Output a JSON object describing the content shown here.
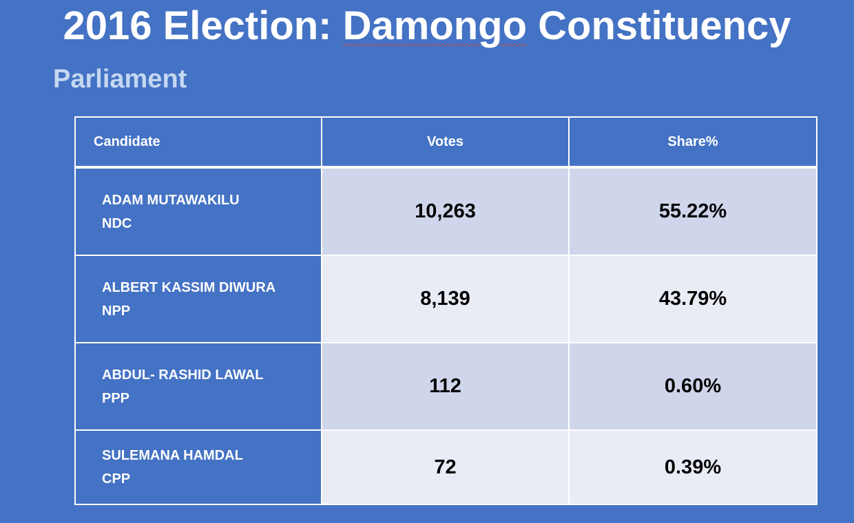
{
  "slide": {
    "title_prefix": "2016 Election: ",
    "title_place": "Damongo",
    "title_suffix": " Constituency",
    "subtitle": "Parliament"
  },
  "table": {
    "headers": {
      "candidate": "Candidate",
      "votes": "Votes",
      "share": "Share%"
    },
    "rows": [
      {
        "name": "ADAM MUTAWAKILU",
        "party": "NDC",
        "votes": "10,263",
        "share": "55.22%"
      },
      {
        "name": "ALBERT KASSIM DIWURA",
        "party": "NPP",
        "votes": "8,139",
        "share": "43.79%"
      },
      {
        "name": "ABDUL- RASHID LAWAL",
        "party": "PPP",
        "votes": "112",
        "share": "0.60%"
      },
      {
        "name": "SULEMANA HAMDAL",
        "party": "CPP",
        "votes": "72",
        "share": "0.39%"
      }
    ]
  },
  "colors": {
    "background": "#4472C4",
    "title_text": "#FFFFFF",
    "subtitle_text": "#C5D7F1",
    "row_band_dark": "#CFD5EA",
    "row_band_light": "#E9EBF5",
    "spellcheck_underline": "#C0504D"
  }
}
